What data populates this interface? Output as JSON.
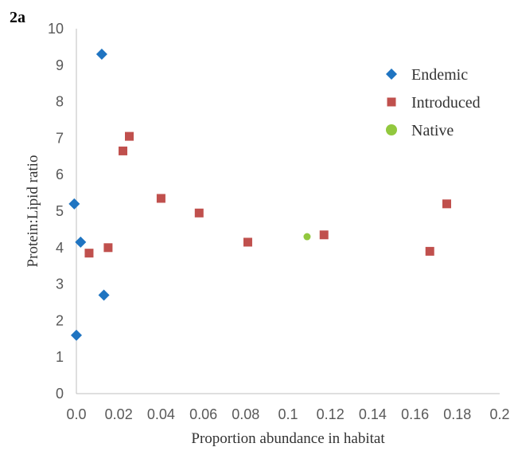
{
  "chart_data": {
    "type": "scatter",
    "panel_label": "2a",
    "xlabel": "Proportion abundance in habitat",
    "ylabel": "Protein:Lipid ratio",
    "xlim": [
      0,
      0.2
    ],
    "ylim": [
      0,
      10
    ],
    "x_ticks": [
      "0.0",
      "0.02",
      "0.04",
      "0.06",
      "0.08",
      "0.1",
      "0.12",
      "0.14",
      "0.16",
      "0.18",
      "0.2"
    ],
    "y_ticks": [
      "0",
      "1",
      "2",
      "3",
      "4",
      "5",
      "6",
      "7",
      "8",
      "9",
      "10"
    ],
    "grid": false,
    "legend_position": "top-right",
    "series": [
      {
        "name": "Endemic",
        "marker": "diamond",
        "color": "#1f74c1",
        "points": [
          {
            "x": 0.012,
            "y": 9.3
          },
          {
            "x": -0.001,
            "y": 5.2
          },
          {
            "x": 0.002,
            "y": 4.15
          },
          {
            "x": 0.013,
            "y": 2.7
          },
          {
            "x": 0.0,
            "y": 1.6
          }
        ]
      },
      {
        "name": "Introduced",
        "marker": "square",
        "color": "#c0504d",
        "points": [
          {
            "x": 0.025,
            "y": 7.05
          },
          {
            "x": 0.022,
            "y": 6.65
          },
          {
            "x": 0.04,
            "y": 5.35
          },
          {
            "x": 0.058,
            "y": 4.95
          },
          {
            "x": 0.081,
            "y": 4.15
          },
          {
            "x": 0.117,
            "y": 4.35
          },
          {
            "x": 0.167,
            "y": 3.9
          },
          {
            "x": 0.175,
            "y": 5.2
          },
          {
            "x": 0.006,
            "y": 3.85
          },
          {
            "x": 0.015,
            "y": 4.0
          }
        ]
      },
      {
        "name": "Native",
        "marker": "circle",
        "color": "#92c83e",
        "points": [
          {
            "x": 0.109,
            "y": 4.3
          }
        ]
      }
    ]
  }
}
